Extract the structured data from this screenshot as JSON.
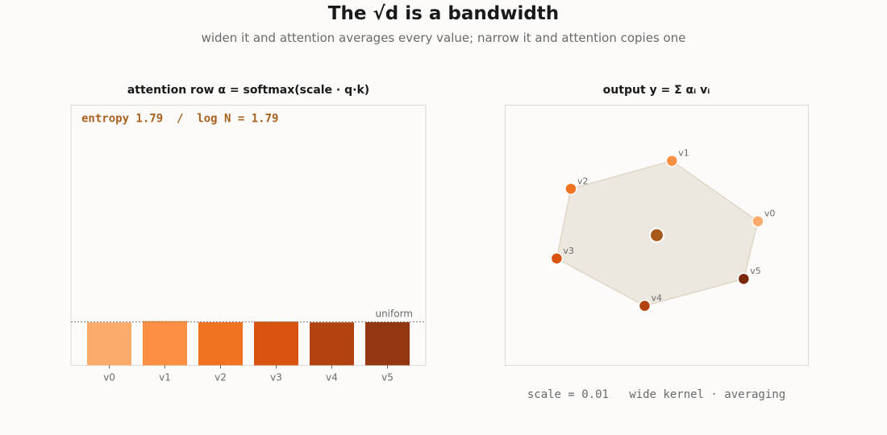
{
  "title": "The √d is a bandwidth",
  "subtitle": "widen it and attention averages every value; narrow it and attention copies one",
  "caption": "scale = 0.01   wide kernel · averaging",
  "colors": {
    "background": "#fcfbfa",
    "annotation": "#a8621e",
    "hull_fill": "#ede8df",
    "hull_stroke": "#e0d6c6",
    "output_point": "#a85a1a",
    "frame": "#d9d9d9"
  },
  "chart_data": [
    {
      "type": "bar",
      "title": "attention row  α = softmax(scale · q·k)",
      "categories": [
        "v0",
        "v1",
        "v2",
        "v3",
        "v4",
        "v5"
      ],
      "values": [
        0.165,
        0.17,
        0.166,
        0.168,
        0.165,
        0.166
      ],
      "colors": [
        "#fdab6b",
        "#fd8f43",
        "#f07322",
        "#d8530e",
        "#b24311",
        "#933710"
      ],
      "ylim": [
        0,
        1.0
      ],
      "reference_line": {
        "label": "uniform",
        "value": 0.1667
      },
      "annotation": "entropy 1.79  /  log N = 1.79",
      "grid": false
    },
    {
      "type": "scatter",
      "title": "output  y = Σ αᵢ vᵢ",
      "points": [
        {
          "label": "v0",
          "x": 1.0,
          "y": 0.15,
          "color": "#fdab6b"
        },
        {
          "label": "v1",
          "x": 0.15,
          "y": 0.8,
          "color": "#fd8f43"
        },
        {
          "label": "v2",
          "x": -0.85,
          "y": 0.5,
          "color": "#f07322"
        },
        {
          "label": "v3",
          "x": -0.99,
          "y": -0.25,
          "color": "#d8530e"
        },
        {
          "label": "v4",
          "x": -0.12,
          "y": -0.76,
          "color": "#b24311"
        },
        {
          "label": "v5",
          "x": 0.86,
          "y": -0.47,
          "color": "#7a2808"
        }
      ],
      "output": {
        "x": 0.0,
        "y": 0.0
      },
      "xlim": [
        -1.5,
        1.5
      ],
      "ylim": [
        -1.4,
        1.4
      ],
      "grid": false
    }
  ]
}
